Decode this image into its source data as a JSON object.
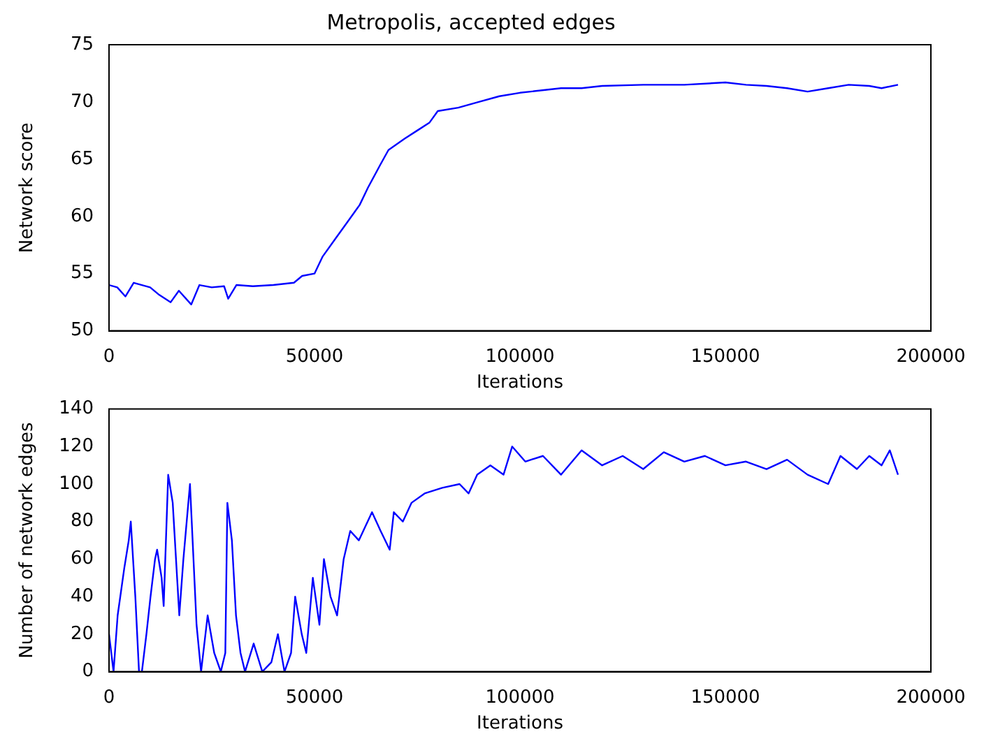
{
  "chart_data": [
    {
      "type": "line",
      "title": "Metropolis, accepted edges",
      "xlabel": "Iterations",
      "ylabel": "Network score",
      "xlim": [
        0,
        200000
      ],
      "xticks": [
        0,
        50000,
        100000,
        150000,
        200000
      ],
      "ylim": [
        50,
        75
      ],
      "yticks": [
        50,
        55,
        60,
        65,
        70,
        75
      ],
      "grid": false,
      "legend": false,
      "marker": "none",
      "series": [
        {
          "color": "#0000ff",
          "x": [
            0,
            2000,
            4000,
            6000,
            10000,
            12000,
            15000,
            17000,
            20000,
            22000,
            25000,
            28000,
            29000,
            31000,
            35000,
            40000,
            45000,
            47000,
            50000,
            52000,
            55000,
            58000,
            61000,
            63000,
            66000,
            68000,
            72000,
            75000,
            78000,
            80000,
            85000,
            90000,
            95000,
            100000,
            105000,
            110000,
            115000,
            120000,
            130000,
            140000,
            150000,
            155000,
            160000,
            165000,
            170000,
            175000,
            180000,
            185000,
            188000,
            192000
          ],
          "values": [
            54,
            53.8,
            53,
            54.2,
            53.8,
            53.2,
            52.5,
            53.5,
            52.3,
            54,
            53.8,
            53.9,
            52.8,
            54,
            53.9,
            54,
            54.2,
            54.8,
            55,
            56.5,
            58,
            59.5,
            61,
            62.5,
            64.5,
            65.8,
            66.8,
            67.5,
            68.2,
            69.2,
            69.5,
            70,
            70.5,
            70.8,
            71,
            71.2,
            71.2,
            71.4,
            71.5,
            71.5,
            71.7,
            71.5,
            71.4,
            71.2,
            70.9,
            71.2,
            71.5,
            71.4,
            71.2,
            71.5
          ]
        }
      ]
    },
    {
      "type": "line",
      "xlabel": "Iterations",
      "ylabel": "Number of network edges",
      "xlim": [
        0,
        200000
      ],
      "xticks": [
        0,
        50000,
        100000,
        150000,
        200000
      ],
      "ylim": [
        0,
        140
      ],
      "yticks": [
        0,
        20,
        40,
        60,
        80,
        100,
        120,
        140
      ],
      "grid": false,
      "legend": false,
      "marker": "none",
      "series": [
        {
          "color": "#0000ff",
          "x": [
            0,
            1100,
            2100,
            3700,
            4800,
            5300,
            6400,
            7300,
            8000,
            9100,
            10100,
            11200,
            11700,
            12800,
            13300,
            14400,
            15500,
            17100,
            18100,
            19700,
            21300,
            22400,
            24000,
            25600,
            27200,
            28300,
            28800,
            29900,
            30900,
            32000,
            33100,
            35200,
            37300,
            39500,
            41100,
            42700,
            44300,
            45300,
            46900,
            48000,
            49600,
            51200,
            52300,
            53900,
            55500,
            57100,
            58700,
            60800,
            64000,
            66100,
            68300,
            69300,
            71500,
            73600,
            76800,
            81100,
            85300,
            87500,
            89600,
            92800,
            96000,
            98100,
            101300,
            105600,
            110000,
            115000,
            120000,
            125000,
            130000,
            135000,
            140000,
            145000,
            150000,
            155000,
            160000,
            165000,
            170000,
            175000,
            178000,
            182000,
            185000,
            188000,
            190000,
            192000
          ],
          "values": [
            20,
            0,
            30,
            55,
            70,
            80,
            40,
            0,
            0,
            20,
            40,
            60,
            65,
            50,
            35,
            105,
            90,
            30,
            60,
            100,
            25,
            0,
            30,
            10,
            0,
            10,
            90,
            70,
            30,
            10,
            0,
            15,
            0,
            5,
            20,
            0,
            10,
            40,
            20,
            10,
            50,
            25,
            60,
            40,
            30,
            60,
            75,
            70,
            85,
            75,
            65,
            85,
            80,
            90,
            95,
            98,
            100,
            95,
            105,
            110,
            105,
            120,
            112,
            115,
            105,
            118,
            110,
            115,
            108,
            117,
            112,
            115,
            110,
            112,
            108,
            113,
            105,
            100,
            115,
            108,
            115,
            110,
            118,
            105
          ]
        }
      ]
    }
  ]
}
